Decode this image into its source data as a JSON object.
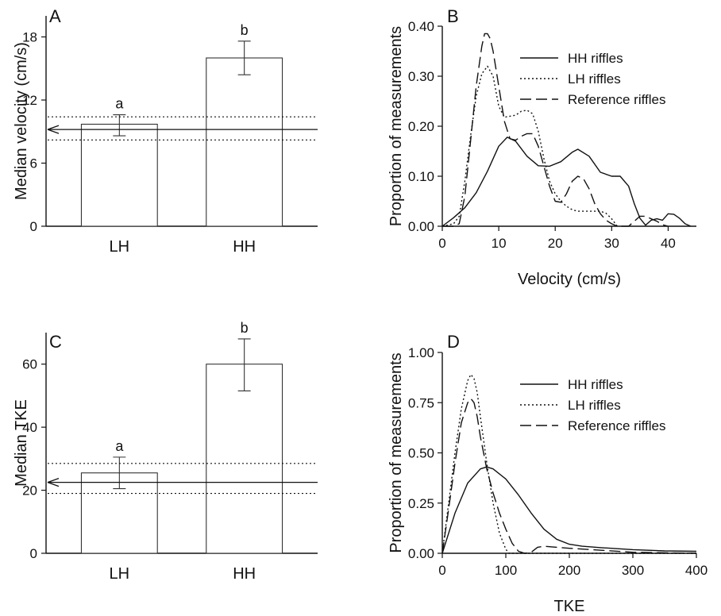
{
  "chart_data": [
    {
      "panel": "A",
      "type": "bar",
      "categories": [
        "LH",
        "HH"
      ],
      "values": [
        9.7,
        16.0
      ],
      "error_low": [
        8.6,
        14.4
      ],
      "error_high": [
        10.6,
        17.6
      ],
      "significance": [
        "a",
        "b"
      ],
      "reference": {
        "median": 9.2,
        "ci_low": 8.2,
        "ci_high": 10.4
      },
      "xlabel": "",
      "ylabel": "Median velocity (cm/s)",
      "ylim": [
        0,
        20
      ],
      "yticks": [
        0,
        6,
        12,
        18
      ],
      "ytick_labels": [
        "0",
        "6",
        "12",
        "18"
      ]
    },
    {
      "panel": "B",
      "type": "line",
      "xlabel": "Velocity (cm/s)",
      "ylabel": "Proportion of measurements",
      "xlim": [
        0,
        45
      ],
      "ylim": [
        0,
        0.4
      ],
      "xticks": [
        0,
        10,
        20,
        30,
        40
      ],
      "xtick_labels": [
        "0",
        "10",
        "20",
        "30",
        "40"
      ],
      "yticks": [
        0,
        0.1,
        0.2,
        0.3,
        0.4
      ],
      "ytick_labels": [
        "0.00",
        "0.10",
        "0.20",
        "0.30",
        "0.40"
      ],
      "legend_position": "top-right",
      "series": [
        {
          "name": "HH riffles",
          "style": "solid",
          "x": [
            0,
            2,
            4,
            6,
            8,
            10,
            11.5,
            13,
            15,
            17,
            19,
            21,
            23,
            24,
            26,
            28,
            30,
            31.5,
            33,
            34,
            35,
            36,
            37,
            38,
            39,
            40,
            41,
            42,
            43,
            44
          ],
          "y": [
            0,
            0.017,
            0.037,
            0.067,
            0.11,
            0.16,
            0.178,
            0.17,
            0.14,
            0.121,
            0.12,
            0.129,
            0.148,
            0.154,
            0.14,
            0.108,
            0.1,
            0.1,
            0.08,
            0.045,
            0.016,
            0.002,
            0.012,
            0.015,
            0.012,
            0.025,
            0.024,
            0.016,
            0.005,
            0
          ]
        },
        {
          "name": "LH riffles",
          "style": "dotted",
          "x": [
            0,
            2,
            3,
            4,
            5,
            6,
            7,
            8,
            9,
            10,
            11,
            12,
            13,
            14,
            15,
            16,
            17,
            18,
            19,
            20,
            21,
            22,
            23,
            24,
            25,
            26,
            27,
            28,
            29,
            30,
            31
          ],
          "y": [
            0,
            0.005,
            0.02,
            0.09,
            0.18,
            0.26,
            0.305,
            0.32,
            0.3,
            0.24,
            0.218,
            0.22,
            0.222,
            0.23,
            0.232,
            0.225,
            0.19,
            0.135,
            0.09,
            0.065,
            0.05,
            0.04,
            0.033,
            0.03,
            0.03,
            0.03,
            0.03,
            0.03,
            0.026,
            0.015,
            0
          ]
        },
        {
          "name": "Reference riffles",
          "style": "dashed",
          "x": [
            0,
            2,
            3,
            4,
            5,
            6,
            7,
            7.5,
            8,
            8.5,
            9,
            10,
            11,
            12,
            13,
            14,
            15,
            16,
            17,
            18,
            19,
            20,
            21,
            22,
            23,
            24,
            25,
            26,
            27,
            28,
            29,
            30,
            31,
            32,
            33,
            34,
            35,
            36,
            37,
            38,
            39,
            40
          ],
          "y": [
            0,
            0,
            0.005,
            0.06,
            0.17,
            0.28,
            0.36,
            0.385,
            0.385,
            0.375,
            0.35,
            0.28,
            0.21,
            0.175,
            0.172,
            0.18,
            0.185,
            0.185,
            0.16,
            0.12,
            0.08,
            0.05,
            0.048,
            0.065,
            0.09,
            0.1,
            0.095,
            0.075,
            0.045,
            0.025,
            0.012,
            0.005,
            0,
            0,
            0,
            0.01,
            0.02,
            0.02,
            0.015,
            0.01,
            0.003,
            0
          ]
        }
      ]
    },
    {
      "panel": "C",
      "type": "bar",
      "categories": [
        "LH",
        "HH"
      ],
      "values": [
        25.5,
        60.0
      ],
      "error_low": [
        20.5,
        51.5
      ],
      "error_high": [
        30.5,
        68.0
      ],
      "significance": [
        "a",
        "b"
      ],
      "reference": {
        "median": 22.5,
        "ci_low": 19.0,
        "ci_high": 28.5
      },
      "xlabel": "",
      "ylabel": "Median TKE",
      "ylim": [
        0,
        70
      ],
      "yticks": [
        0,
        20,
        40,
        60
      ],
      "ytick_labels": [
        "0",
        "20",
        "40",
        "60"
      ]
    },
    {
      "panel": "D",
      "type": "line",
      "xlabel": "TKE",
      "ylabel": "Proportion of measurements",
      "xlim": [
        0,
        400
      ],
      "ylim": [
        0,
        1.0
      ],
      "xticks": [
        0,
        100,
        200,
        300,
        400
      ],
      "xtick_labels": [
        "0",
        "100",
        "200",
        "300",
        "400"
      ],
      "yticks": [
        0,
        0.25,
        0.5,
        0.75,
        1.0
      ],
      "ytick_labels": [
        "0.00",
        "0.25",
        "0.50",
        "0.75",
        "1.00"
      ],
      "legend_position": "top-right",
      "series": [
        {
          "name": "HH riffles",
          "style": "solid",
          "x": [
            0,
            20,
            40,
            60,
            70,
            80,
            100,
            120,
            140,
            160,
            180,
            200,
            220,
            250,
            300,
            350,
            400
          ],
          "y": [
            0,
            0.2,
            0.35,
            0.42,
            0.43,
            0.42,
            0.37,
            0.29,
            0.2,
            0.12,
            0.07,
            0.045,
            0.035,
            0.028,
            0.018,
            0.012,
            0.01
          ]
        },
        {
          "name": "LH riffles",
          "style": "dotted",
          "x": [
            0,
            10,
            20,
            30,
            40,
            45,
            50,
            55,
            60,
            70,
            80,
            90,
            100,
            105,
            110,
            150,
            200,
            250,
            300,
            400
          ],
          "y": [
            0,
            0.25,
            0.5,
            0.72,
            0.86,
            0.89,
            0.87,
            0.8,
            0.68,
            0.45,
            0.25,
            0.1,
            0.02,
            0,
            0,
            0,
            0,
            0,
            0,
            0
          ]
        },
        {
          "name": "Reference riffles",
          "style": "dashed",
          "x": [
            0,
            10,
            20,
            30,
            40,
            45,
            50,
            55,
            60,
            70,
            80,
            90,
            100,
            110,
            120,
            130,
            140,
            150,
            160,
            180,
            200,
            250,
            300,
            400
          ],
          "y": [
            0,
            0.22,
            0.45,
            0.65,
            0.75,
            0.77,
            0.75,
            0.68,
            0.58,
            0.42,
            0.3,
            0.2,
            0.12,
            0.05,
            0.01,
            0,
            0.005,
            0.03,
            0.035,
            0.03,
            0.025,
            0.015,
            0.005,
            0
          ]
        }
      ]
    }
  ]
}
